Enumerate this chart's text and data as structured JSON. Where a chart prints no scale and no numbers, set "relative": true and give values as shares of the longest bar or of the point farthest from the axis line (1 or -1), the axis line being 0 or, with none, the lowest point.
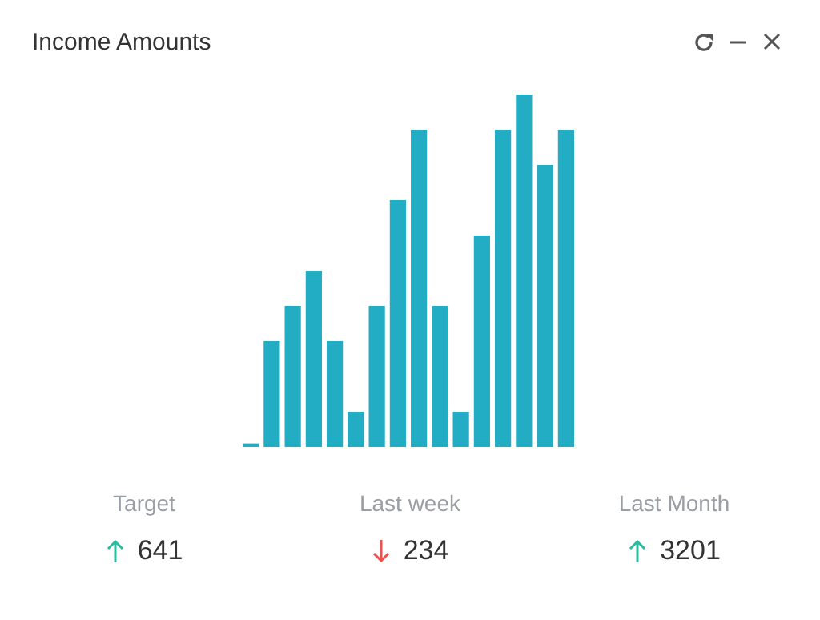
{
  "chart_data": {
    "type": "bar",
    "title": "Income Amounts",
    "relative": true,
    "categories": [
      null,
      null,
      null,
      null,
      null,
      null,
      null,
      null,
      null,
      null,
      null,
      null,
      null,
      null,
      null,
      null
    ],
    "values": [
      0.01,
      0.3,
      0.4,
      0.5,
      0.3,
      0.1,
      0.4,
      0.7,
      0.9,
      0.4,
      0.1,
      0.6,
      0.9,
      1,
      0.8,
      0.9
    ],
    "color": "#22adc4",
    "legend": false,
    "annotations": [
      "Target",
      "641",
      "Last week",
      "234",
      "Last Month",
      "3201"
    ]
  }
}
